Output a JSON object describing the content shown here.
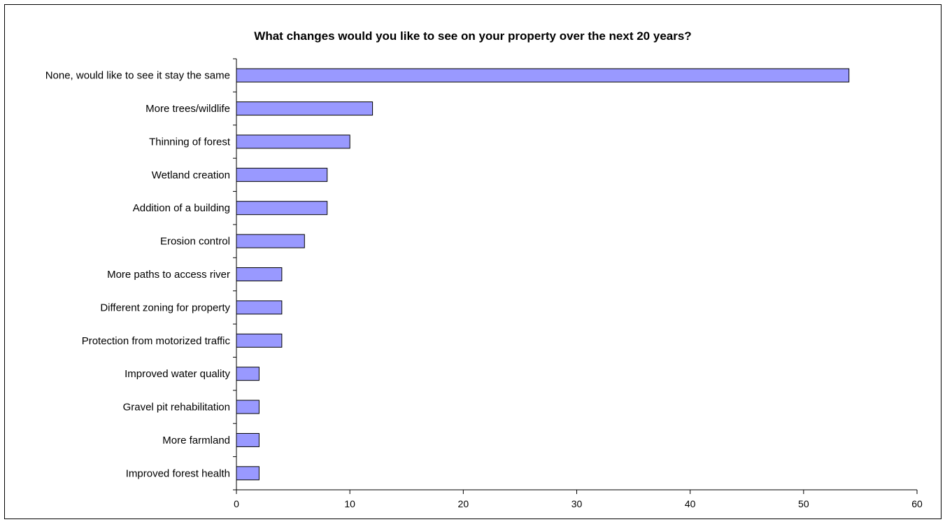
{
  "chart_data": {
    "type": "bar",
    "orientation": "horizontal",
    "title": "What changes would you like to see on your property over the next 20 years?",
    "xlabel": "",
    "ylabel": "",
    "categories": [
      "None, would like to see it stay the same",
      "More trees/wildlife",
      "Thinning of forest",
      "Wetland creation",
      "Addition of a building",
      "Erosion control",
      "More paths to access river",
      "Different zoning for property",
      "Protection from motorized traffic",
      "Improved water quality",
      "Gravel pit rehabilitation",
      "More farmland",
      "Improved forest health"
    ],
    "values": [
      54,
      12,
      10,
      8,
      8,
      6,
      4,
      4,
      4,
      2,
      2,
      2,
      2
    ],
    "xlim": [
      0,
      60
    ],
    "xticks": [
      0,
      10,
      20,
      30,
      40,
      50,
      60
    ],
    "grid": false,
    "legend": "none",
    "bar_color": "#9999ff"
  }
}
